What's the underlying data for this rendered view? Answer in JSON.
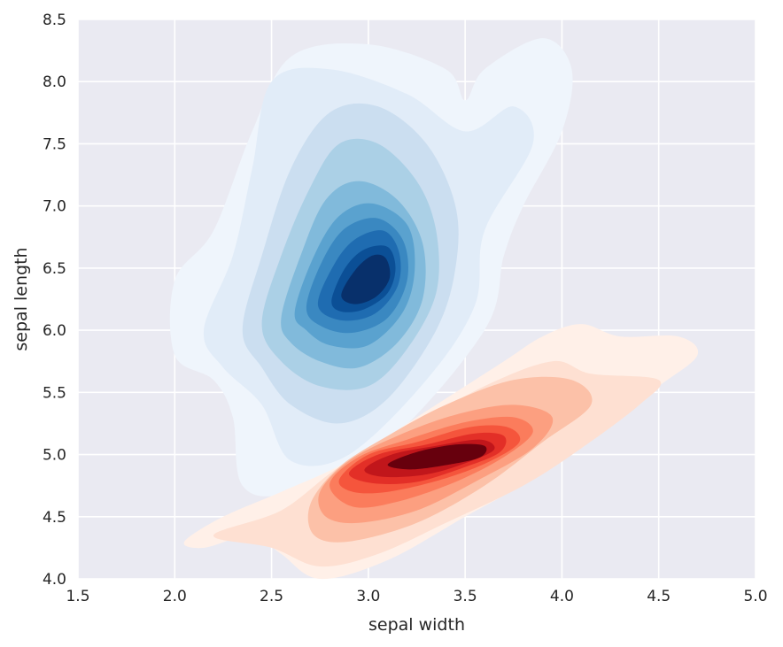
{
  "chart_data": {
    "type": "kde-contour",
    "title": "",
    "xlabel": "sepal width",
    "ylabel": "sepal length",
    "xlim": [
      1.5,
      5.0
    ],
    "ylim": [
      4.0,
      8.5
    ],
    "x_ticks": [
      "1.5",
      "2.0",
      "2.5",
      "3.0",
      "3.5",
      "4.0",
      "4.5",
      "5.0"
    ],
    "y_ticks": [
      "4.0",
      "4.5",
      "5.0",
      "5.5",
      "6.0",
      "6.5",
      "7.0",
      "7.5",
      "8.0",
      "8.5"
    ],
    "grid": true,
    "legend": "none",
    "background_color": "#eaeaf2",
    "grid_color": "#ffffff",
    "series": [
      {
        "colormap": "Blues",
        "center": [
          3.0,
          6.6
        ],
        "levels": [
          {
            "color": "#eff5fc",
            "contour": [
              [
                2.0,
                6.4
              ],
              [
                2.2,
                6.8
              ],
              [
                2.4,
                7.6
              ],
              [
                2.6,
                8.2
              ],
              [
                3.0,
                8.3
              ],
              [
                3.4,
                8.1
              ],
              [
                3.5,
                7.85
              ],
              [
                3.6,
                8.1
              ],
              [
                3.9,
                8.35
              ],
              [
                4.05,
                8.1
              ],
              [
                4.0,
                7.6
              ],
              [
                3.8,
                7.0
              ],
              [
                3.7,
                6.6
              ],
              [
                3.6,
                6.0
              ],
              [
                3.1,
                5.1
              ],
              [
                2.6,
                4.7
              ],
              [
                2.35,
                4.75
              ],
              [
                2.3,
                5.3
              ],
              [
                2.2,
                5.6
              ],
              [
                2.0,
                5.8
              ]
            ]
          },
          {
            "color": "#e1ecf8",
            "contour": [
              [
                2.15,
                6.0
              ],
              [
                2.3,
                6.6
              ],
              [
                2.4,
                7.3
              ],
              [
                2.5,
                8.0
              ],
              [
                2.8,
                8.1
              ],
              [
                3.2,
                7.9
              ],
              [
                3.5,
                7.6
              ],
              [
                3.75,
                7.8
              ],
              [
                3.85,
                7.5
              ],
              [
                3.6,
                6.8
              ],
              [
                3.55,
                6.2
              ],
              [
                3.3,
                5.6
              ],
              [
                2.9,
                5.0
              ],
              [
                2.6,
                4.95
              ],
              [
                2.45,
                5.4
              ],
              [
                2.25,
                5.7
              ]
            ]
          },
          {
            "color": "#cbdef0",
            "contour": [
              [
                2.35,
                6.0
              ],
              [
                2.45,
                6.6
              ],
              [
                2.6,
                7.3
              ],
              [
                2.8,
                7.75
              ],
              [
                3.05,
                7.8
              ],
              [
                3.3,
                7.5
              ],
              [
                3.45,
                7.0
              ],
              [
                3.45,
                6.5
              ],
              [
                3.35,
                6.0
              ],
              [
                3.1,
                5.45
              ],
              [
                2.85,
                5.25
              ],
              [
                2.6,
                5.4
              ],
              [
                2.45,
                5.7
              ]
            ]
          },
          {
            "color": "#abd0e6",
            "contour": [
              [
                2.45,
                6.05
              ],
              [
                2.55,
                6.6
              ],
              [
                2.7,
                7.15
              ],
              [
                2.85,
                7.5
              ],
              [
                3.05,
                7.5
              ],
              [
                3.25,
                7.2
              ],
              [
                3.35,
                6.8
              ],
              [
                3.35,
                6.3
              ],
              [
                3.2,
                5.85
              ],
              [
                3.0,
                5.55
              ],
              [
                2.75,
                5.55
              ],
              [
                2.55,
                5.75
              ]
            ]
          },
          {
            "color": "#81badb",
            "contour": [
              [
                2.55,
                6.1
              ],
              [
                2.65,
                6.6
              ],
              [
                2.78,
                7.05
              ],
              [
                2.95,
                7.2
              ],
              [
                3.15,
                7.05
              ],
              [
                3.28,
                6.7
              ],
              [
                3.28,
                6.25
              ],
              [
                3.15,
                5.9
              ],
              [
                2.95,
                5.7
              ],
              [
                2.75,
                5.75
              ],
              [
                2.6,
                5.9
              ]
            ]
          },
          {
            "color": "#5aa2cf",
            "contour": [
              [
                2.62,
                6.15
              ],
              [
                2.72,
                6.6
              ],
              [
                2.85,
                6.92
              ],
              [
                3.02,
                7.02
              ],
              [
                3.2,
                6.85
              ],
              [
                3.24,
                6.5
              ],
              [
                3.18,
                6.15
              ],
              [
                3.0,
                5.88
              ],
              [
                2.8,
                5.88
              ],
              [
                2.68,
                6.0
              ]
            ]
          },
          {
            "color": "#3a88c1",
            "contour": [
              [
                2.68,
                6.18
              ],
              [
                2.76,
                6.55
              ],
              [
                2.88,
                6.82
              ],
              [
                3.05,
                6.9
              ],
              [
                3.18,
                6.72
              ],
              [
                3.2,
                6.4
              ],
              [
                3.1,
                6.1
              ],
              [
                2.92,
                5.98
              ],
              [
                2.76,
                6.03
              ]
            ]
          },
          {
            "color": "#1f6cb1",
            "contour": [
              [
                2.74,
                6.2
              ],
              [
                2.82,
                6.52
              ],
              [
                2.93,
                6.73
              ],
              [
                3.08,
                6.8
              ],
              [
                3.16,
                6.62
              ],
              [
                3.15,
                6.35
              ],
              [
                3.03,
                6.13
              ],
              [
                2.86,
                6.08
              ]
            ]
          },
          {
            "color": "#0b4f96",
            "contour": [
              [
                2.81,
                6.24
              ],
              [
                2.88,
                6.5
              ],
              [
                2.98,
                6.65
              ],
              [
                3.1,
                6.67
              ],
              [
                3.14,
                6.5
              ],
              [
                3.1,
                6.3
              ],
              [
                2.98,
                6.17
              ],
              [
                2.86,
                6.15
              ]
            ]
          },
          {
            "color": "#08306b",
            "contour": [
              [
                2.86,
                6.28
              ],
              [
                2.93,
                6.48
              ],
              [
                3.02,
                6.6
              ],
              [
                3.09,
                6.58
              ],
              [
                3.11,
                6.42
              ],
              [
                3.04,
                6.27
              ],
              [
                2.93,
                6.21
              ]
            ]
          }
        ]
      },
      {
        "colormap": "Reds",
        "center": [
          3.4,
          5.0
        ],
        "levels": [
          {
            "color": "#fff0e8",
            "contour": [
              [
                2.05,
                4.3
              ],
              [
                2.25,
                4.5
              ],
              [
                2.55,
                4.7
              ],
              [
                2.9,
                4.95
              ],
              [
                3.3,
                5.35
              ],
              [
                3.7,
                5.75
              ],
              [
                3.9,
                5.95
              ],
              [
                4.1,
                6.05
              ],
              [
                4.3,
                5.95
              ],
              [
                4.6,
                5.95
              ],
              [
                4.7,
                5.8
              ],
              [
                4.5,
                5.55
              ],
              [
                4.2,
                5.2
              ],
              [
                3.9,
                4.85
              ],
              [
                3.5,
                4.5
              ],
              [
                3.1,
                4.15
              ],
              [
                2.75,
                4.0
              ],
              [
                2.55,
                4.2
              ],
              [
                2.4,
                4.35
              ],
              [
                2.15,
                4.25
              ]
            ]
          },
          {
            "color": "#fee0d2",
            "contour": [
              [
                2.2,
                4.35
              ],
              [
                2.55,
                4.55
              ],
              [
                2.85,
                4.9
              ],
              [
                3.2,
                5.2
              ],
              [
                3.6,
                5.55
              ],
              [
                3.95,
                5.75
              ],
              [
                4.15,
                5.65
              ],
              [
                4.5,
                5.6
              ],
              [
                4.4,
                5.4
              ],
              [
                4.1,
                5.05
              ],
              [
                3.8,
                4.75
              ],
              [
                3.4,
                4.45
              ],
              [
                3.05,
                4.2
              ],
              [
                2.75,
                4.1
              ],
              [
                2.5,
                4.25
              ]
            ]
          },
          {
            "color": "#fcc1a8",
            "contour": [
              [
                2.7,
                4.6
              ],
              [
                2.85,
                4.9
              ],
              [
                3.1,
                5.15
              ],
              [
                3.4,
                5.4
              ],
              [
                3.75,
                5.6
              ],
              [
                4.05,
                5.6
              ],
              [
                4.15,
                5.4
              ],
              [
                3.9,
                5.1
              ],
              [
                3.6,
                4.75
              ],
              [
                3.25,
                4.45
              ],
              [
                2.9,
                4.3
              ],
              [
                2.72,
                4.35
              ]
            ]
          },
          {
            "color": "#fc9f80",
            "contour": [
              [
                2.75,
                4.7
              ],
              [
                2.9,
                4.95
              ],
              [
                3.15,
                5.15
              ],
              [
                3.45,
                5.32
              ],
              [
                3.75,
                5.4
              ],
              [
                3.95,
                5.3
              ],
              [
                3.85,
                5.05
              ],
              [
                3.55,
                4.78
              ],
              [
                3.25,
                4.55
              ],
              [
                2.95,
                4.45
              ],
              [
                2.78,
                4.5
              ]
            ]
          },
          {
            "color": "#fb7c5c",
            "contour": [
              [
                2.8,
                4.76
              ],
              [
                2.95,
                4.98
              ],
              [
                3.2,
                5.12
              ],
              [
                3.5,
                5.26
              ],
              [
                3.75,
                5.3
              ],
              [
                3.85,
                5.18
              ],
              [
                3.7,
                4.98
              ],
              [
                3.45,
                4.78
              ],
              [
                3.15,
                4.62
              ],
              [
                2.92,
                4.58
              ]
            ]
          },
          {
            "color": "#f5553c",
            "contour": [
              [
                2.85,
                4.8
              ],
              [
                3.0,
                5.0
              ],
              [
                3.25,
                5.1
              ],
              [
                3.52,
                5.22
              ],
              [
                3.72,
                5.22
              ],
              [
                3.78,
                5.1
              ],
              [
                3.62,
                4.94
              ],
              [
                3.38,
                4.8
              ],
              [
                3.1,
                4.7
              ],
              [
                2.92,
                4.7
              ]
            ]
          },
          {
            "color": "#e32f27",
            "contour": [
              [
                2.9,
                4.85
              ],
              [
                3.05,
                5.0
              ],
              [
                3.3,
                5.08
              ],
              [
                3.55,
                5.17
              ],
              [
                3.7,
                5.15
              ],
              [
                3.68,
                5.02
              ],
              [
                3.5,
                4.9
              ],
              [
                3.25,
                4.78
              ],
              [
                3.02,
                4.77
              ]
            ]
          },
          {
            "color": "#c1161b",
            "contour": [
              [
                2.98,
                4.88
              ],
              [
                3.12,
                5.0
              ],
              [
                3.35,
                5.07
              ],
              [
                3.58,
                5.12
              ],
              [
                3.65,
                5.04
              ],
              [
                3.5,
                4.93
              ],
              [
                3.3,
                4.84
              ],
              [
                3.08,
                4.82
              ]
            ]
          },
          {
            "color": "#67000d",
            "contour": [
              [
                3.1,
                4.92
              ],
              [
                3.25,
                5.02
              ],
              [
                3.45,
                5.08
              ],
              [
                3.6,
                5.07
              ],
              [
                3.58,
                4.98
              ],
              [
                3.42,
                4.92
              ],
              [
                3.22,
                4.88
              ]
            ]
          }
        ]
      }
    ]
  }
}
